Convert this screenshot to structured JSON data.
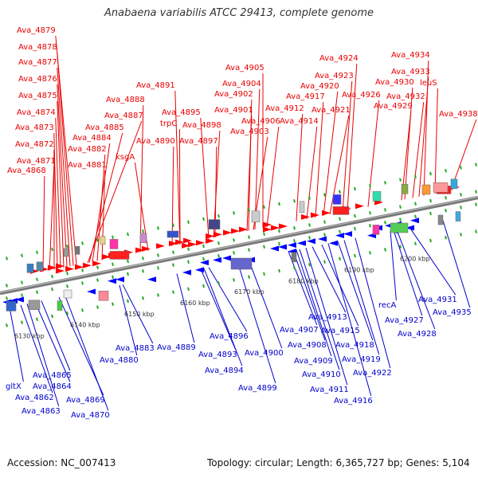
{
  "title": "Anabaena variabilis ATCC 29413, complete genome",
  "footer": {
    "accession": "Accession: NC_007413",
    "summary": "Topology: circular; Length: 6,365,727 bp; Genes: 5,104"
  },
  "colors": {
    "forward_label": "#e80000",
    "reverse_label": "#0000cc",
    "forward_arrow": "#ff0000",
    "reverse_arrow": "#0000ff",
    "backbone": "#888888",
    "tick": "#22aa22"
  },
  "kbp_labels": [
    "6130 kbp",
    "6140 kbp",
    "6150 kbp",
    "6160 kbp",
    "6170 kbp",
    "6180 kbp",
    "6190 kbp",
    "6200 kbp"
  ],
  "forward_genes": [
    "Ava_4868",
    "Ava_4871",
    "Ava_4872",
    "Ava_4873",
    "Ava_4874",
    "Ava_4875",
    "Ava_4876",
    "Ava_4877",
    "Ava_4878",
    "Ava_4879",
    "Ava_4881",
    "Ava_4882",
    "Ava_4884",
    "Ava_4885",
    "Ava_4887",
    "Ava_4888",
    "ksgA",
    "Ava_4890",
    "trpC",
    "Ava_4891",
    "Ava_4895",
    "Ava_4897",
    "Ava_4898",
    "Ava_4901",
    "Ava_4902",
    "Ava_4903",
    "Ava_4904",
    "Ava_4905",
    "Ava_4906",
    "Ava_4912",
    "Ava_4914",
    "Ava_4917",
    "Ava_4920",
    "Ava_4921",
    "Ava_4923",
    "Ava_4924",
    "Ava_4926",
    "Ava_4929",
    "Ava_4930",
    "Ava_4932",
    "Ava_4933",
    "Ava_4934",
    "leuS",
    "Ava_4938"
  ],
  "reverse_genes": [
    "gltX",
    "Ava_4862",
    "Ava_4863",
    "Ava_4864",
    "Ava_4865",
    "Ava_4869",
    "Ava_4870",
    "Ava_4880",
    "Ava_4883",
    "Ava_4889",
    "Ava_4893",
    "Ava_4894",
    "Ava_4896",
    "Ava_4899",
    "Ava_4900",
    "Ava_4907",
    "Ava_4908",
    "Ava_4909",
    "Ava_4910",
    "Ava_4911",
    "Ava_4913",
    "Ava_4915",
    "Ava_4916",
    "Ava_4918",
    "Ava_4919",
    "Ava_4922",
    "recA",
    "Ava_4927",
    "Ava_4928",
    "Ava_4931",
    "Ava_4935"
  ]
}
